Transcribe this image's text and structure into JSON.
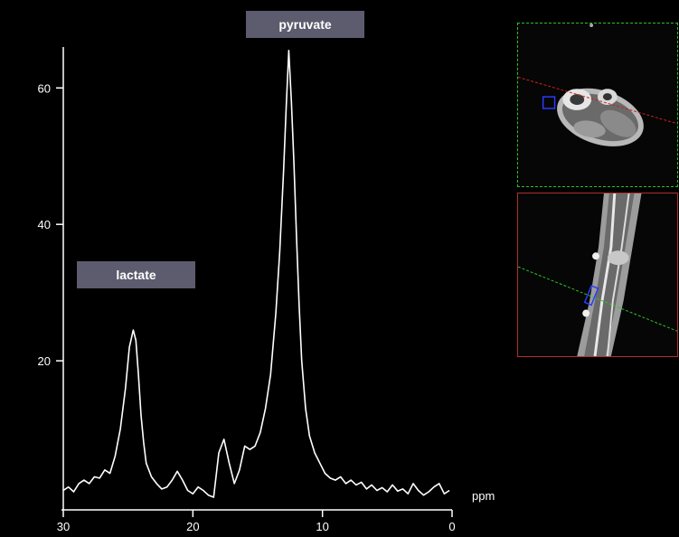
{
  "chart_data": {
    "type": "line",
    "x_unit_label": "ppm",
    "x_ticks": [
      30,
      20,
      10,
      0
    ],
    "y_ticks": [
      20,
      40,
      60
    ],
    "xlim": [
      30,
      0
    ],
    "ylim": [
      0,
      66
    ],
    "x_reversed": true,
    "grid": false,
    "line_color": "#ffffff",
    "peak_labels": [
      {
        "text": "pyruvate",
        "ppm": 12.2,
        "value": 65.5
      },
      {
        "text": "lactate",
        "ppm": 24.3,
        "value": 24.5
      }
    ],
    "series": [
      {
        "x": [
          30.0,
          29.6,
          29.2,
          28.8,
          28.4,
          28.0,
          27.6,
          27.2,
          26.8,
          26.4,
          26.0,
          25.6,
          25.2,
          24.9,
          24.6,
          24.4,
          24.2,
          24.0,
          23.8,
          23.6,
          23.2,
          22.8,
          22.4,
          22.0,
          21.6,
          21.2,
          20.8,
          20.4,
          20.0,
          19.6,
          19.2,
          18.8,
          18.4,
          18.0,
          17.6,
          17.2,
          16.8,
          16.4,
          16.0,
          15.6,
          15.2,
          14.8,
          14.4,
          14.0,
          13.6,
          13.3,
          13.0,
          12.8,
          12.6,
          12.4,
          12.2,
          12.0,
          11.8,
          11.6,
          11.3,
          11.0,
          10.6,
          10.2,
          9.8,
          9.4,
          9.0,
          8.6,
          8.2,
          7.8,
          7.4,
          7.0,
          6.6,
          6.2,
          5.8,
          5.4,
          5.0,
          4.6,
          4.2,
          3.8,
          3.4,
          3.0,
          2.6,
          2.2,
          1.8,
          1.4,
          1.0,
          0.6,
          0.2
        ],
        "y": [
          1.0,
          1.5,
          0.8,
          2.0,
          2.5,
          2.0,
          3.0,
          2.8,
          4.0,
          3.5,
          6.0,
          10.0,
          16.0,
          22.0,
          24.5,
          23.0,
          18.0,
          12.0,
          8.0,
          5.0,
          3.0,
          2.0,
          1.2,
          1.5,
          2.5,
          3.8,
          2.5,
          1.0,
          0.5,
          1.5,
          1.0,
          0.3,
          0.0,
          6.5,
          8.5,
          5.0,
          2.0,
          4.0,
          7.5,
          7.0,
          7.5,
          9.5,
          13.0,
          18.0,
          27.0,
          36.0,
          48.0,
          57.0,
          65.5,
          58.0,
          49.0,
          38.0,
          28.0,
          20.0,
          13.0,
          9.0,
          6.5,
          5.0,
          3.5,
          2.8,
          2.5,
          3.0,
          2.0,
          2.5,
          1.8,
          2.2,
          1.2,
          1.8,
          1.0,
          1.4,
          0.8,
          1.8,
          0.9,
          1.2,
          0.5,
          2.0,
          1.0,
          0.3,
          0.8,
          1.5,
          2.0,
          0.5,
          1.0
        ]
      }
    ]
  }
}
